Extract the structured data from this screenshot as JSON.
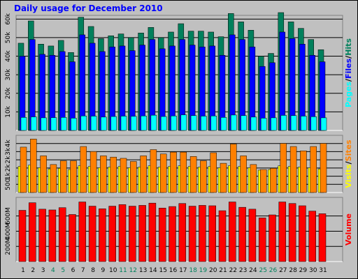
{
  "title": "Daily usage for December 2010",
  "colors": {
    "hits": "#00805c",
    "files": "#0000ff",
    "pages": "#00ffff",
    "visits": "#ffff00",
    "sites": "#ff8000",
    "volume": "#ff0000",
    "weekend": "#00805c",
    "weekday": "#000000"
  },
  "chart_data": [
    {
      "type": "bar",
      "categories": [
        "1",
        "2",
        "3",
        "4",
        "5",
        "6",
        "7",
        "8",
        "9",
        "10",
        "11",
        "12",
        "13",
        "14",
        "15",
        "16",
        "17",
        "18",
        "19",
        "20",
        "21",
        "22",
        "23",
        "24",
        "25",
        "26",
        "27",
        "28",
        "29",
        "30",
        "31"
      ],
      "weekend_days": [
        4,
        5,
        11,
        12,
        18,
        19,
        25,
        26
      ],
      "y_ticks": [
        "10k",
        "20k",
        "30k",
        "40k",
        "50k",
        "60k"
      ],
      "ylim": [
        0,
        62000
      ],
      "series": [
        {
          "name": "Hits",
          "values": [
            47000,
            59000,
            46500,
            45500,
            48500,
            42000,
            61000,
            56000,
            49500,
            51000,
            52000,
            50000,
            52500,
            55500,
            50000,
            53000,
            57500,
            53500,
            53500,
            53000,
            50500,
            63000,
            58500,
            54000,
            40000,
            41500,
            63500,
            58500,
            55000,
            49000,
            43500
          ]
        },
        {
          "name": "Files",
          "values": [
            40000,
            49000,
            41000,
            40500,
            42500,
            37000,
            51500,
            47000,
            42500,
            45000,
            45500,
            43000,
            46000,
            49000,
            44000,
            45500,
            49000,
            46000,
            45000,
            45500,
            40500,
            51500,
            49000,
            45000,
            34500,
            36500,
            53000,
            49500,
            46500,
            40500,
            37000
          ]
        },
        {
          "name": "Pages",
          "values": [
            7000,
            7300,
            6800,
            6900,
            7000,
            6600,
            7800,
            7700,
            7200,
            7500,
            7700,
            7600,
            7800,
            8200,
            7500,
            7800,
            8400,
            8000,
            7700,
            7800,
            7000,
            8300,
            8000,
            7200,
            6600,
            6800,
            8100,
            8000,
            7700,
            7400,
            6800
          ]
        }
      ],
      "legend": [
        {
          "label": "Pages",
          "color": "#00ffff"
        },
        {
          "label": "/",
          "color": "#000000"
        },
        {
          "label": "Files",
          "color": "#0000ff"
        },
        {
          "label": "/",
          "color": "#000000"
        },
        {
          "label": "Hits",
          "color": "#00805c"
        }
      ]
    },
    {
      "type": "bar",
      "categories": [
        "1",
        "2",
        "3",
        "4",
        "5",
        "6",
        "7",
        "8",
        "9",
        "10",
        "11",
        "12",
        "13",
        "14",
        "15",
        "16",
        "17",
        "18",
        "19",
        "20",
        "21",
        "22",
        "23",
        "24",
        "25",
        "26",
        "27",
        "28",
        "29",
        "30",
        "31"
      ],
      "y_ticks": [
        "500",
        "1k",
        "2k",
        "2k",
        "3k",
        "4k"
      ],
      "ylim": [
        0,
        4600
      ],
      "series": [
        {
          "name": "Visits",
          "values": [
            2100,
            2200,
            2000,
            1900,
            1950,
            1850,
            2150,
            2100,
            2000,
            2050,
            2100,
            2000,
            2050,
            2150,
            2050,
            2100,
            2150,
            2100,
            2050,
            2100,
            2000,
            2150,
            2100,
            2000,
            1800,
            1850,
            2150,
            2100,
            2050,
            2000,
            1900
          ]
        },
        {
          "name": "Sites",
          "values": [
            3650,
            4300,
            2950,
            2250,
            2550,
            2550,
            3700,
            3300,
            2950,
            2850,
            2750,
            2500,
            2950,
            3450,
            3100,
            3250,
            3250,
            2900,
            2550,
            3200,
            2350,
            3900,
            2950,
            2250,
            1850,
            1950,
            3950,
            3700,
            3350,
            3700,
            3950
          ]
        }
      ],
      "legend": [
        {
          "label": "Visits",
          "color": "#ffff00"
        },
        {
          "label": "/",
          "color": "#000000"
        },
        {
          "label": "Sites",
          "color": "#ff8000"
        }
      ]
    },
    {
      "type": "bar",
      "categories": [
        "1",
        "2",
        "3",
        "4",
        "5",
        "6",
        "7",
        "8",
        "9",
        "10",
        "11",
        "12",
        "13",
        "14",
        "15",
        "16",
        "17",
        "18",
        "19",
        "20",
        "21",
        "22",
        "23",
        "24",
        "25",
        "26",
        "27",
        "28",
        "29",
        "30",
        "31"
      ],
      "y_ticks": [
        "200M",
        "400M",
        "600M"
      ],
      "ylim": [
        0,
        845
      ],
      "series": [
        {
          "name": "Volume",
          "values": [
            675,
            775,
            690,
            680,
            710,
            620,
            785,
            730,
            695,
            730,
            750,
            730,
            740,
            770,
            705,
            725,
            765,
            730,
            740,
            735,
            670,
            785,
            715,
            690,
            575,
            615,
            785,
            765,
            735,
            665,
            630
          ]
        }
      ],
      "legend": [
        {
          "label": "Volume",
          "color": "#ff0000"
        }
      ]
    }
  ]
}
